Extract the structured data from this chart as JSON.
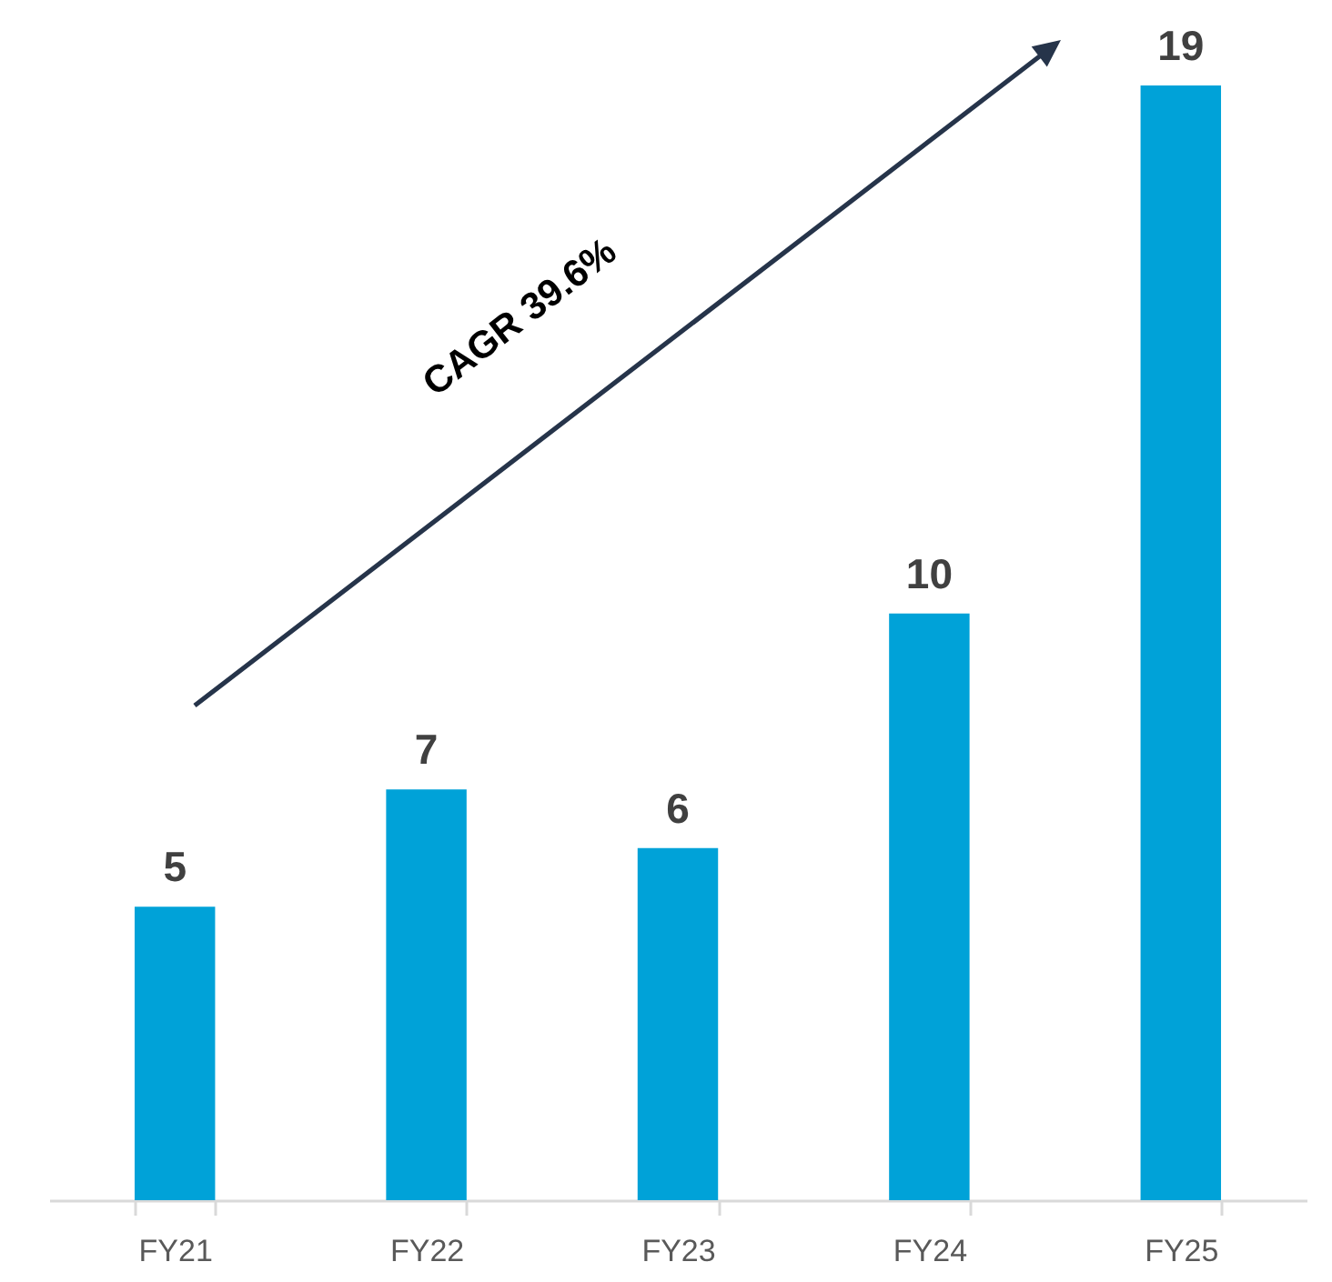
{
  "chart_data": {
    "type": "bar",
    "categories": [
      "FY21",
      "FY22",
      "FY23",
      "FY24",
      "FY25"
    ],
    "values": [
      5,
      7,
      6,
      10,
      19
    ],
    "color": "#00a2d8",
    "data_labels": true,
    "annotations": [
      "CAGR 39.6%"
    ]
  }
}
